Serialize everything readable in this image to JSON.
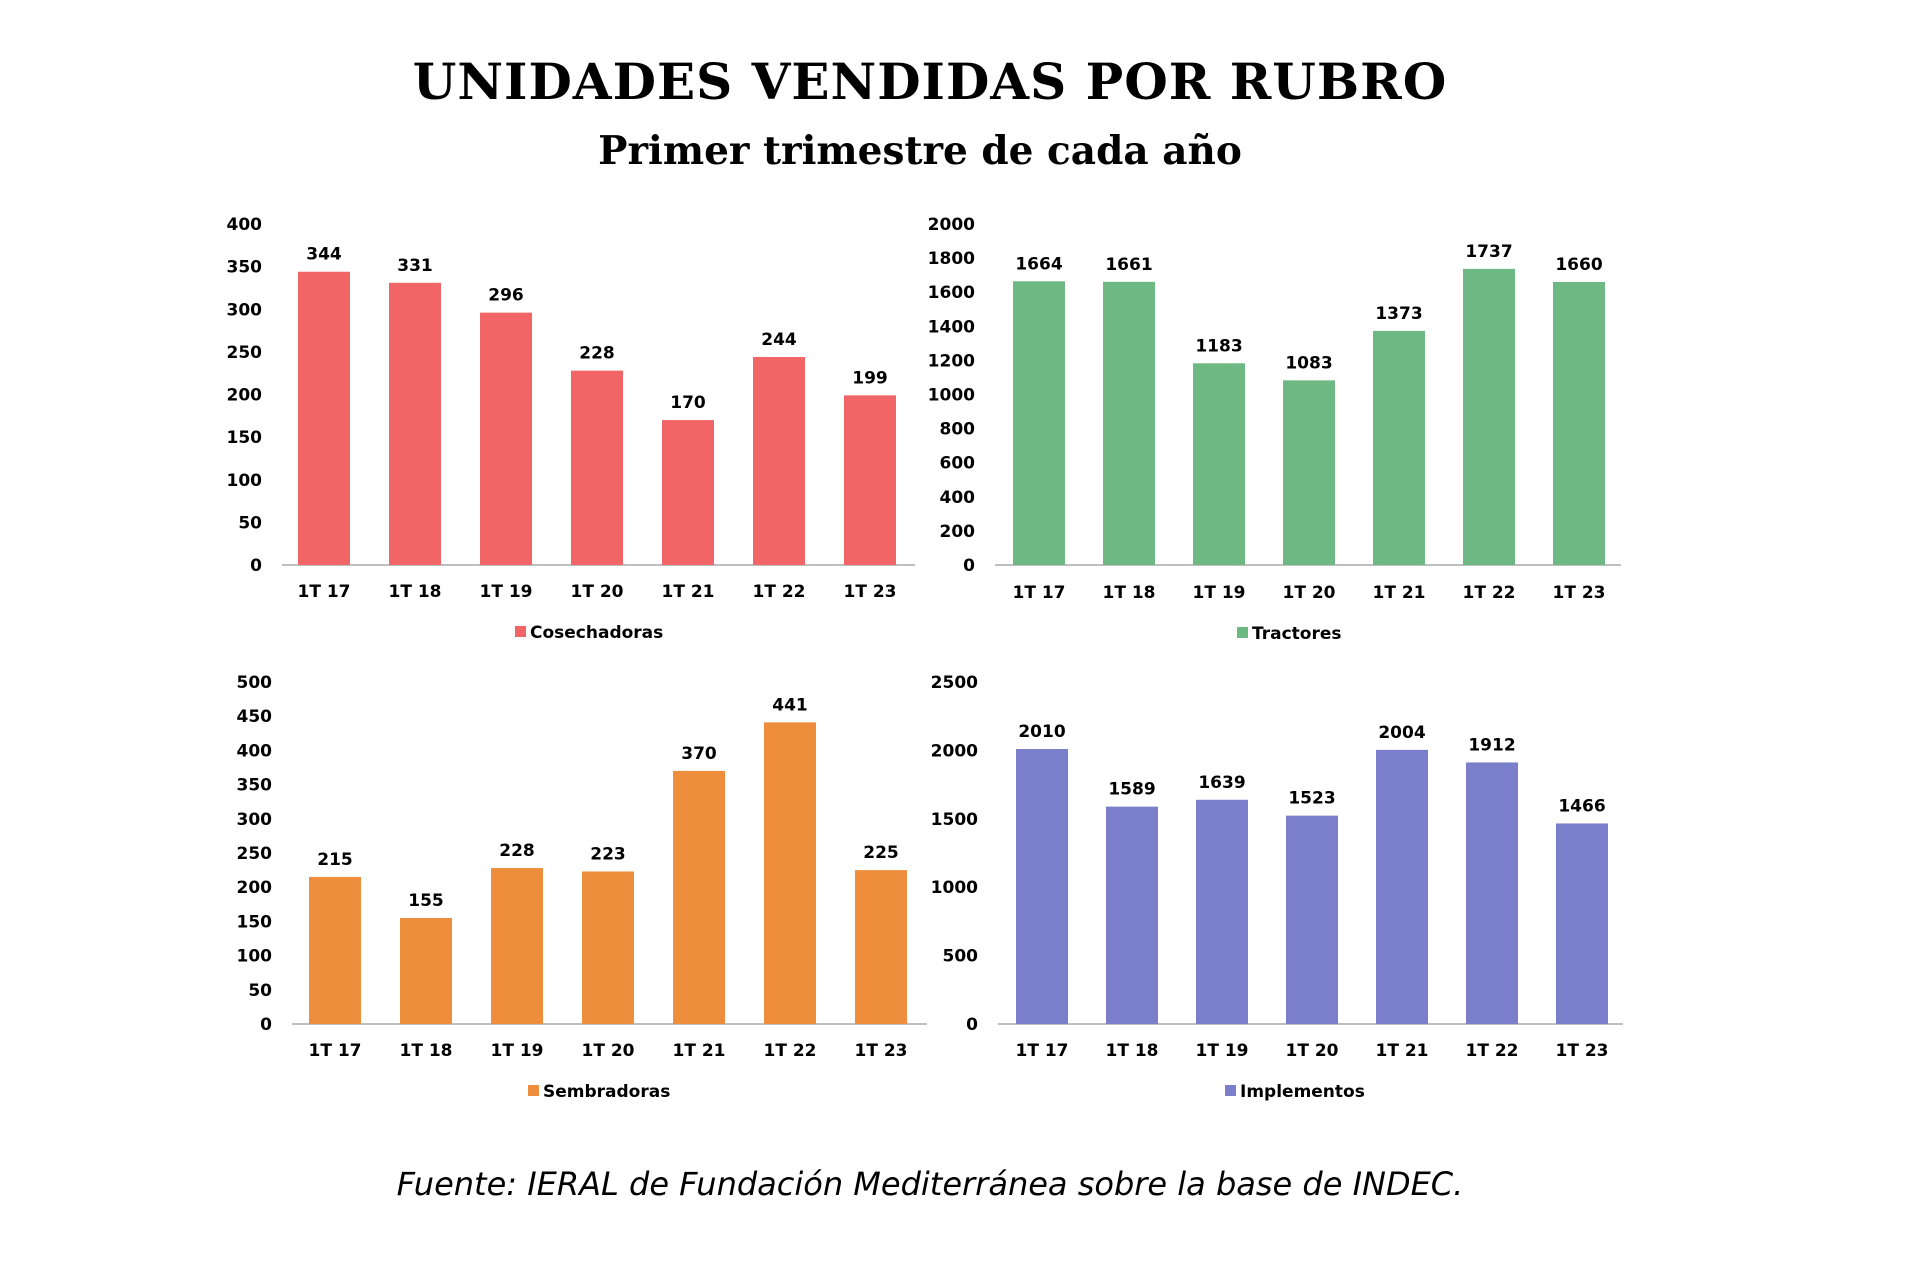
{
  "title": "UNIDADES VENDIDAS POR RUBRO",
  "subtitle": "Primer trimestre de cada año",
  "source": "Fuente: IERAL de Fundación Mediterránea sobre la base de INDEC.",
  "chart_data": [
    {
      "type": "bar",
      "categories": [
        "1T 17",
        "1T 18",
        "1T 19",
        "1T 20",
        "1T 21",
        "1T 22",
        "1T 23"
      ],
      "series": [
        {
          "name": "Cosechadoras",
          "values": [
            344,
            331,
            296,
            228,
            170,
            244,
            199
          ]
        }
      ],
      "ylim": [
        0,
        400
      ],
      "yticks": [
        0,
        50,
        100,
        150,
        200,
        250,
        300,
        350,
        400
      ],
      "color": "#F26566",
      "legend": "bottom",
      "grid": false
    },
    {
      "type": "bar",
      "categories": [
        "1T 17",
        "1T 18",
        "1T 19",
        "1T 20",
        "1T 21",
        "1T 22",
        "1T 23"
      ],
      "series": [
        {
          "name": "Tractores",
          "values": [
            1664,
            1661,
            1183,
            1083,
            1373,
            1737,
            1660
          ]
        }
      ],
      "ylim": [
        0,
        2000
      ],
      "yticks": [
        0,
        200,
        400,
        600,
        800,
        1000,
        1200,
        1400,
        1600,
        1800,
        2000
      ],
      "color": "#6DB883",
      "legend": "bottom",
      "grid": false
    },
    {
      "type": "bar",
      "categories": [
        "1T 17",
        "1T 18",
        "1T 19",
        "1T 20",
        "1T 21",
        "1T 22",
        "1T 23"
      ],
      "series": [
        {
          "name": "Sembradoras",
          "values": [
            215,
            155,
            228,
            223,
            370,
            441,
            225
          ]
        }
      ],
      "ylim": [
        0,
        500
      ],
      "yticks": [
        0,
        50,
        100,
        150,
        200,
        250,
        300,
        350,
        400,
        450,
        500
      ],
      "color": "#EE8E3D",
      "legend": "bottom",
      "grid": false
    },
    {
      "type": "bar",
      "categories": [
        "1T 17",
        "1T 18",
        "1T 19",
        "1T 20",
        "1T 21",
        "1T 22",
        "1T 23"
      ],
      "series": [
        {
          "name": "Implementos",
          "values": [
            2010,
            1589,
            1639,
            1523,
            2004,
            1912,
            1466
          ]
        }
      ],
      "ylim": [
        0,
        2500
      ],
      "yticks": [
        0,
        500,
        1000,
        1500,
        2000,
        2500
      ],
      "color": "#7A7ECB",
      "legend": "bottom",
      "grid": false
    }
  ]
}
